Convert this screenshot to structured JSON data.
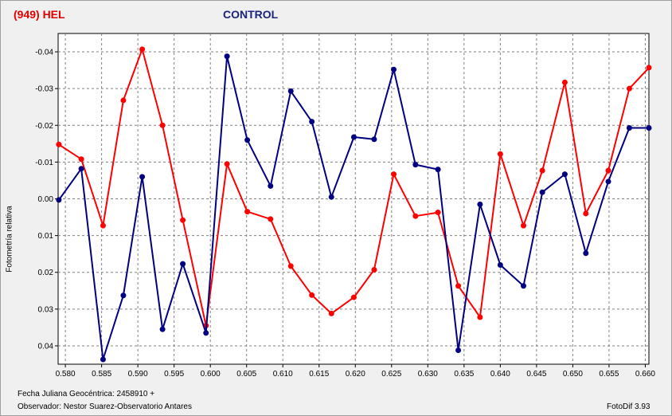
{
  "header": {
    "object_title": "(949) HEL",
    "control_title": "CONTROL"
  },
  "footer": {
    "date_label": "Fecha Juliana Geocéntrica: 2458910 +",
    "observer_label": "Observador: Nestor Suarez-Observatorio Antares",
    "software_label": "FotoDif 3.93"
  },
  "colors": {
    "hel": "#ff0000",
    "control": "#000080",
    "grid": "#808080",
    "plot_bg": "#ffffff"
  },
  "chart_data": {
    "type": "line",
    "ylabel": "Fotometría relativa",
    "xlabel": "",
    "xlim": [
      0.579,
      0.6605
    ],
    "ylim": [
      0.045,
      -0.045
    ],
    "y_inverted": true,
    "grid": true,
    "xticks": [
      "0.580",
      "0.585",
      "0.590",
      "0.595",
      "0.600",
      "0.605",
      "0.610",
      "0.615",
      "0.620",
      "0.625",
      "0.630",
      "0.635",
      "0.640",
      "0.645",
      "0.650",
      "0.655",
      "0.660"
    ],
    "xtick_values": [
      0.58,
      0.585,
      0.59,
      0.595,
      0.6,
      0.605,
      0.61,
      0.615,
      0.62,
      0.625,
      0.63,
      0.635,
      0.64,
      0.645,
      0.65,
      0.655,
      0.66
    ],
    "yticks": [
      "-0.04",
      "-0.03",
      "-0.02",
      "-0.01",
      "0.00",
      "0.01",
      "0.02",
      "0.03",
      "0.04"
    ],
    "ytick_values": [
      -0.04,
      -0.03,
      -0.02,
      -0.01,
      0.0,
      0.01,
      0.02,
      0.03,
      0.04
    ],
    "series": [
      {
        "name": "(949) HEL",
        "color": "#ff0000",
        "x": [
          0.5791,
          0.5822,
          0.5852,
          0.588,
          0.5906,
          0.5934,
          0.5962,
          0.5994,
          0.6023,
          0.6051,
          0.6083,
          0.6111,
          0.614,
          0.6167,
          0.6198,
          0.6226,
          0.6253,
          0.6283,
          0.6314,
          0.6342,
          0.6372,
          0.64,
          0.6432,
          0.6458,
          0.6489,
          0.6518,
          0.6549,
          0.6578,
          0.6605
        ],
        "y": [
          -0.0148,
          -0.0108,
          0.0073,
          -0.0268,
          -0.0407,
          -0.02,
          0.0058,
          0.0345,
          -0.0095,
          0.0035,
          0.0055,
          0.0183,
          0.0262,
          0.0312,
          0.0268,
          0.0193,
          -0.0067,
          0.0047,
          0.0037,
          0.0237,
          0.0322,
          -0.0122,
          0.0073,
          -0.0077,
          -0.0317,
          0.004,
          -0.0077,
          -0.03,
          -0.0357
        ]
      },
      {
        "name": "CONTROL",
        "color": "#000080",
        "x": [
          0.5791,
          0.5822,
          0.5852,
          0.588,
          0.5906,
          0.5934,
          0.5962,
          0.5994,
          0.6023,
          0.6051,
          0.6083,
          0.6111,
          0.614,
          0.6167,
          0.6198,
          0.6226,
          0.6253,
          0.6283,
          0.6314,
          0.6342,
          0.6372,
          0.64,
          0.6432,
          0.6458,
          0.6489,
          0.6518,
          0.6549,
          0.6578,
          0.6605
        ],
        "y": [
          0.0003,
          -0.0082,
          0.0437,
          0.0263,
          -0.006,
          0.0355,
          0.0177,
          0.0365,
          -0.0388,
          -0.016,
          -0.0035,
          -0.0293,
          -0.021,
          -0.0005,
          -0.0168,
          -0.0162,
          -0.0352,
          -0.0093,
          -0.008,
          0.0412,
          0.0015,
          0.018,
          0.0237,
          -0.0018,
          -0.0067,
          0.0148,
          -0.0047,
          -0.0193,
          -0.0193
        ]
      }
    ]
  }
}
